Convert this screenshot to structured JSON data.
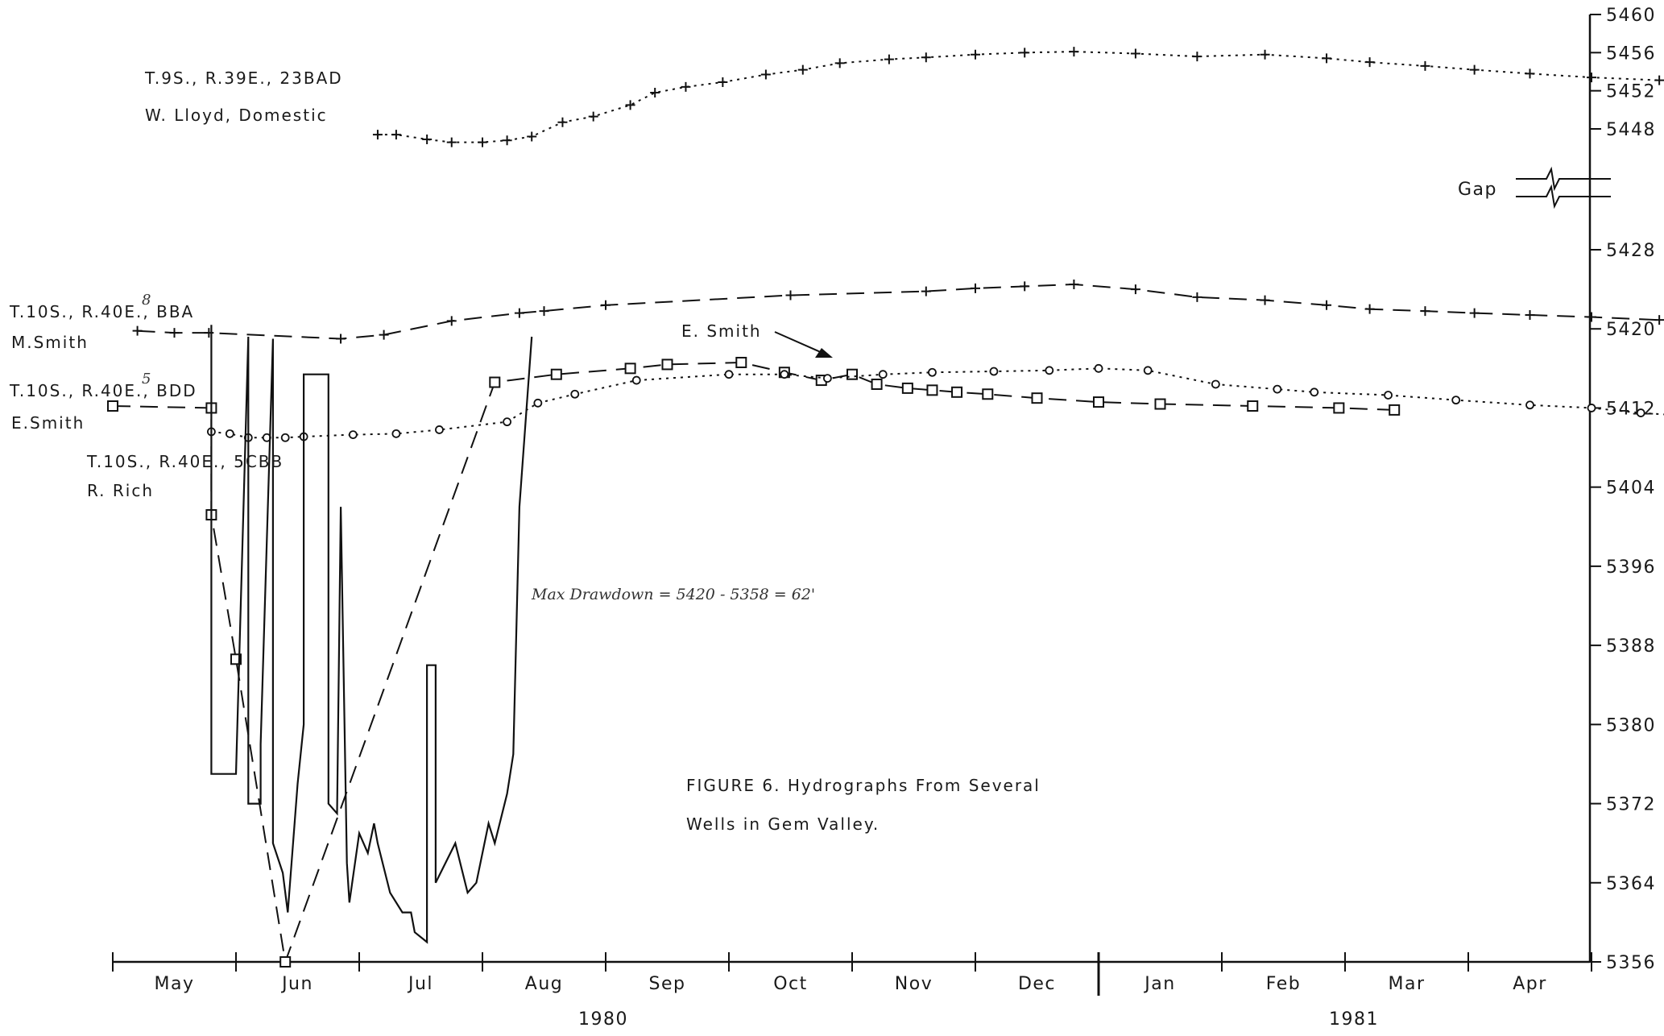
{
  "chart_data": {
    "type": "line",
    "title_line1": "FIGURE 6. Hydrographs From Several",
    "title_line2": "Wells in Gem Valley.",
    "annotation": "Max Drawdown = 5420 - 5358 = 62'",
    "gap_label": "Gap",
    "pointer_label": "E. Smith",
    "x_months": [
      "May",
      "Jun",
      "Jul",
      "Aug",
      "Sep",
      "Oct",
      "Nov",
      "Dec",
      "Jan",
      "Feb",
      "Mar",
      "Apr"
    ],
    "year_labels": [
      "1980",
      "1981"
    ],
    "y_ticks_lower": [
      "5428",
      "5420",
      "5412",
      "5404",
      "5396",
      "5388",
      "5380",
      "5372",
      "5364",
      "5356"
    ],
    "y_ticks_upper": [
      "5460",
      "5456",
      "5452",
      "5448"
    ],
    "ylim_lower": [
      5356,
      5428
    ],
    "ylim_upper": [
      5448,
      5460
    ],
    "series": [
      {
        "label_line1": "T.9S., R.39E., 23BAD",
        "label_line2": "W. Lloyd, Domestic",
        "marker": "plus",
        "points": [
          [
            2.15,
            5447.4
          ],
          [
            2.3,
            5447.4
          ],
          [
            2.55,
            5446.9
          ],
          [
            2.75,
            5446.6
          ],
          [
            3.0,
            5446.6
          ],
          [
            3.2,
            5446.8
          ],
          [
            3.4,
            5447.2
          ],
          [
            3.65,
            5448.7
          ],
          [
            3.9,
            5449.3
          ],
          [
            4.2,
            5450.5
          ],
          [
            4.4,
            5451.8
          ],
          [
            4.65,
            5452.4
          ],
          [
            4.95,
            5452.9
          ],
          [
            5.3,
            5453.7
          ],
          [
            5.6,
            5454.2
          ],
          [
            5.9,
            5454.9
          ],
          [
            6.3,
            5455.3
          ],
          [
            6.6,
            5455.5
          ],
          [
            7.0,
            5455.8
          ],
          [
            7.4,
            5456.0
          ],
          [
            7.8,
            5456.1
          ],
          [
            8.3,
            5455.9
          ],
          [
            8.8,
            5455.6
          ],
          [
            9.35,
            5455.8
          ],
          [
            9.85,
            5455.4
          ],
          [
            10.2,
            5455.0
          ],
          [
            10.65,
            5454.6
          ],
          [
            11.05,
            5454.2
          ],
          [
            11.5,
            5453.8
          ],
          [
            12.0,
            5453.4
          ],
          [
            12.55,
            5453.1
          ]
        ]
      },
      {
        "label_line1": "T.10S., R.40E., BBA",
        "label_line2": "M.Smith",
        "label_sup": "8",
        "marker": "plus",
        "points": [
          [
            0.2,
            5419.8
          ],
          [
            0.5,
            5419.6
          ],
          [
            0.78,
            5419.6
          ],
          [
            1.85,
            5419.0
          ],
          [
            2.2,
            5419.4
          ],
          [
            2.75,
            5420.8
          ],
          [
            3.3,
            5421.6
          ],
          [
            3.5,
            5421.8
          ],
          [
            4.0,
            5422.4
          ],
          [
            5.5,
            5423.4
          ],
          [
            6.6,
            5423.8
          ],
          [
            7.0,
            5424.1
          ],
          [
            7.4,
            5424.3
          ],
          [
            7.8,
            5424.5
          ],
          [
            8.3,
            5424.0
          ],
          [
            8.8,
            5423.2
          ],
          [
            9.35,
            5422.9
          ],
          [
            9.85,
            5422.4
          ],
          [
            10.2,
            5422.0
          ],
          [
            10.65,
            5421.8
          ],
          [
            11.05,
            5421.6
          ],
          [
            11.5,
            5421.4
          ],
          [
            12.0,
            5421.2
          ],
          [
            12.55,
            5420.9
          ]
        ]
      },
      {
        "label_line1": "T.10S., R.40E., BDD",
        "label_line2": "E.Smith",
        "label_sup": "5",
        "marker": "square",
        "points": [
          [
            0.0,
            5412.2
          ],
          [
            0.8,
            5412.0
          ],
          [
            0.8,
            5401.2
          ],
          [
            1.0,
            5386.6
          ],
          [
            1.4,
            5356.0
          ],
          [
            3.1,
            5414.6
          ],
          [
            3.6,
            5415.4
          ],
          [
            4.2,
            5416.0
          ],
          [
            4.5,
            5416.4
          ],
          [
            5.1,
            5416.6
          ],
          [
            5.45,
            5415.6
          ],
          [
            5.75,
            5414.8
          ],
          [
            6.0,
            5415.4
          ],
          [
            6.2,
            5414.4
          ],
          [
            6.45,
            5414.0
          ],
          [
            6.65,
            5413.8
          ],
          [
            6.85,
            5413.6
          ],
          [
            7.1,
            5413.4
          ],
          [
            7.5,
            5413.0
          ],
          [
            8.0,
            5412.6
          ],
          [
            8.5,
            5412.4
          ],
          [
            9.25,
            5412.2
          ],
          [
            9.95,
            5412.0
          ],
          [
            10.4,
            5411.8
          ]
        ]
      },
      {
        "label_line1": "T.10S., R.40E., 5CBB",
        "label_line2": "R. Rich",
        "marker": "circle",
        "points": [
          [
            0.8,
            5409.6
          ],
          [
            0.95,
            5409.4
          ],
          [
            1.1,
            5409.0
          ],
          [
            1.25,
            5409.0
          ],
          [
            1.4,
            5409.0
          ],
          [
            1.55,
            5409.1
          ],
          [
            1.95,
            5409.3
          ],
          [
            2.3,
            5409.4
          ],
          [
            2.65,
            5409.8
          ],
          [
            3.2,
            5410.6
          ],
          [
            3.45,
            5412.5
          ],
          [
            3.75,
            5413.4
          ],
          [
            4.25,
            5414.8
          ],
          [
            5.0,
            5415.4
          ],
          [
            5.45,
            5415.4
          ],
          [
            5.8,
            5415.0
          ],
          [
            6.25,
            5415.4
          ],
          [
            6.65,
            5415.6
          ],
          [
            7.15,
            5415.7
          ],
          [
            7.6,
            5415.8
          ],
          [
            8.0,
            5416.0
          ],
          [
            8.4,
            5415.8
          ],
          [
            8.95,
            5414.4
          ],
          [
            9.45,
            5413.9
          ],
          [
            9.75,
            5413.6
          ],
          [
            10.35,
            5413.3
          ],
          [
            10.9,
            5412.8
          ],
          [
            11.5,
            5412.3
          ],
          [
            12.0,
            5412.0
          ],
          [
            12.4,
            5411.5
          ],
          [
            13.05,
            5411.0
          ]
        ]
      }
    ],
    "continuous_record": [
      [
        0.8,
        5420.4
      ],
      [
        0.8,
        5375.0
      ],
      [
        1.0,
        5375.0
      ],
      [
        1.1,
        5419.2
      ],
      [
        1.1,
        5372.0
      ],
      [
        1.2,
        5372.0
      ],
      [
        1.2,
        5378.0
      ],
      [
        1.3,
        5419.0
      ],
      [
        1.3,
        5368.0
      ],
      [
        1.38,
        5365.0
      ],
      [
        1.42,
        5361.0
      ],
      [
        1.5,
        5374.0
      ],
      [
        1.55,
        5380.0
      ],
      [
        1.55,
        5415.4
      ],
      [
        1.75,
        5415.4
      ],
      [
        1.75,
        5372.0
      ],
      [
        1.82,
        5371.0
      ],
      [
        1.85,
        5402.0
      ],
      [
        1.9,
        5366.0
      ],
      [
        1.92,
        5362.0
      ],
      [
        2.0,
        5369.0
      ],
      [
        2.07,
        5367.0
      ],
      [
        2.12,
        5370.0
      ],
      [
        2.15,
        5368.0
      ],
      [
        2.25,
        5363.0
      ],
      [
        2.35,
        5361.0
      ],
      [
        2.42,
        5361.0
      ],
      [
        2.45,
        5359.0
      ],
      [
        2.55,
        5358.0
      ],
      [
        2.55,
        5386.0
      ],
      [
        2.62,
        5386.0
      ],
      [
        2.62,
        5364.0
      ],
      [
        2.7,
        5366.0
      ],
      [
        2.78,
        5368.0
      ],
      [
        2.88,
        5363.0
      ],
      [
        2.95,
        5364.0
      ],
      [
        3.05,
        5370.0
      ],
      [
        3.1,
        5368.0
      ],
      [
        3.2,
        5373.0
      ],
      [
        3.25,
        5377.0
      ],
      [
        3.3,
        5402.0
      ],
      [
        3.4,
        5419.2
      ]
    ]
  }
}
